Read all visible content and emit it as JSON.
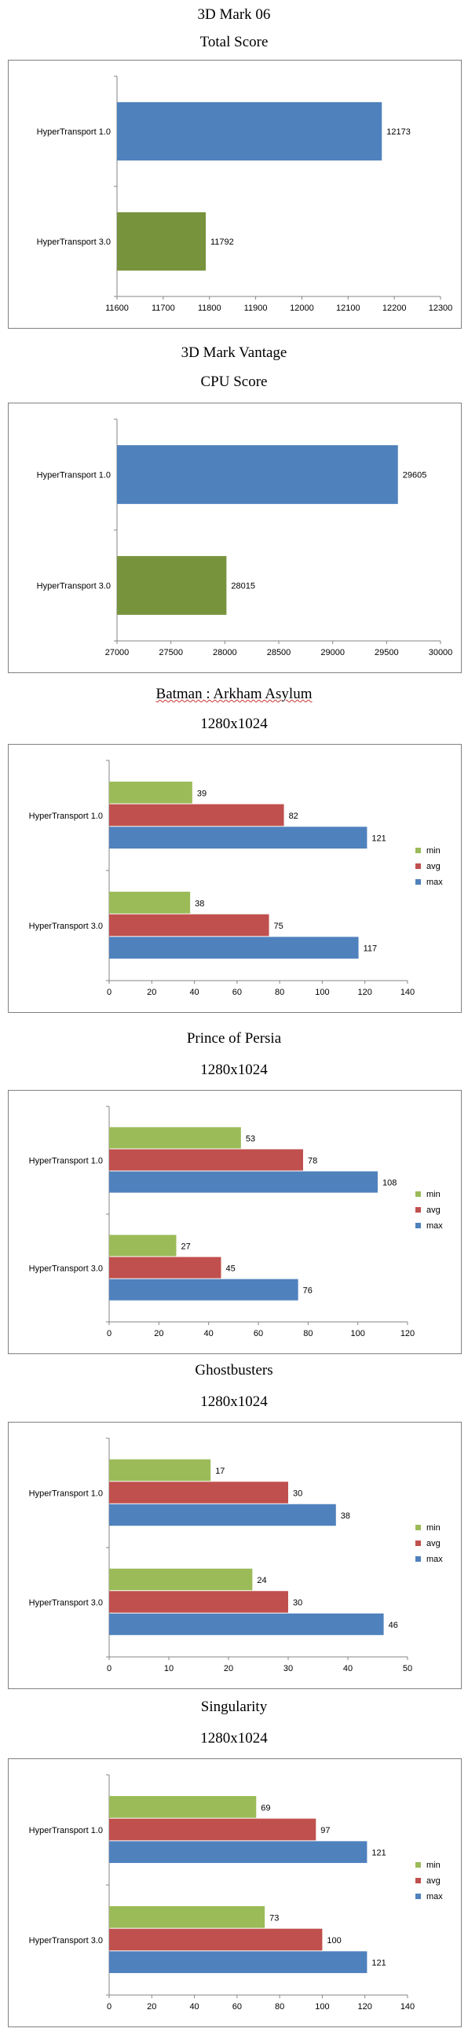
{
  "colors": {
    "max": "#4f81bd",
    "avg": "#c0504d",
    "min": "#9bbb59",
    "ht1": "#4f81bd",
    "ht3": "#77933c"
  },
  "charts": [
    {
      "title": "3D Mark 06",
      "subtitle": "Total Score",
      "chart_data": {
        "type": "bar",
        "orientation": "horizontal",
        "categories": [
          "HyperTransport 1.0",
          "HyperTransport 3.0"
        ],
        "values": [
          12173,
          11792
        ],
        "xlim": [
          11600,
          12300
        ],
        "ticks": [
          11600,
          11700,
          11800,
          11900,
          12000,
          12100,
          12200,
          12300
        ],
        "legend": "none"
      }
    },
    {
      "title": "3D Mark Vantage",
      "subtitle": "CPU Score",
      "chart_data": {
        "type": "bar",
        "orientation": "horizontal",
        "categories": [
          "HyperTransport 1.0",
          "HyperTransport 3.0"
        ],
        "values": [
          29605,
          28015
        ],
        "xlim": [
          27000,
          30000
        ],
        "ticks": [
          27000,
          27500,
          28000,
          28500,
          29000,
          29500,
          30000
        ],
        "legend": "none"
      }
    },
    {
      "title": "Batman : Arkham Asylum",
      "subtitle": "1280x1024",
      "chart_data": {
        "type": "bar",
        "orientation": "horizontal",
        "categories": [
          "HyperTransport 1.0",
          "HyperTransport 3.0"
        ],
        "series": [
          {
            "name": "min",
            "values": [
              39,
              38
            ]
          },
          {
            "name": "avg",
            "values": [
              82,
              75
            ]
          },
          {
            "name": "max",
            "values": [
              121,
              117
            ]
          }
        ],
        "xlim": [
          0,
          140
        ],
        "ticks": [
          0,
          20,
          40,
          60,
          80,
          100,
          120,
          140
        ],
        "legend": "right"
      }
    },
    {
      "title": "Prince of Persia",
      "subtitle": "1280x1024",
      "chart_data": {
        "type": "bar",
        "orientation": "horizontal",
        "categories": [
          "HyperTransport 1.0",
          "HyperTransport 3.0"
        ],
        "series": [
          {
            "name": "min",
            "values": [
              53,
              27
            ]
          },
          {
            "name": "avg",
            "values": [
              78,
              45
            ]
          },
          {
            "name": "max",
            "values": [
              108,
              76
            ]
          }
        ],
        "xlim": [
          0,
          120
        ],
        "ticks": [
          0,
          20,
          40,
          60,
          80,
          100,
          120
        ],
        "legend": "right"
      }
    },
    {
      "title": "Ghostbusters",
      "subtitle": "1280x1024",
      "chart_data": {
        "type": "bar",
        "orientation": "horizontal",
        "categories": [
          "HyperTransport 1.0",
          "HyperTransport 3.0"
        ],
        "series": [
          {
            "name": "min",
            "values": [
              17,
              24
            ]
          },
          {
            "name": "avg",
            "values": [
              30,
              30
            ]
          },
          {
            "name": "max",
            "values": [
              38,
              46
            ]
          }
        ],
        "xlim": [
          0,
          50
        ],
        "ticks": [
          0,
          10,
          20,
          30,
          40,
          50
        ],
        "legend": "right"
      }
    },
    {
      "title": "Singularity",
      "subtitle": "1280x1024",
      "chart_data": {
        "type": "bar",
        "orientation": "horizontal",
        "categories": [
          "HyperTransport 1.0",
          "HyperTransport 3.0"
        ],
        "series": [
          {
            "name": "min",
            "values": [
              69,
              73
            ]
          },
          {
            "name": "avg",
            "values": [
              97,
              100
            ]
          },
          {
            "name": "max",
            "values": [
              121,
              121
            ]
          }
        ],
        "xlim": [
          0,
          140
        ],
        "ticks": [
          0,
          20,
          40,
          60,
          80,
          100,
          120,
          140
        ],
        "legend": "right"
      }
    }
  ]
}
